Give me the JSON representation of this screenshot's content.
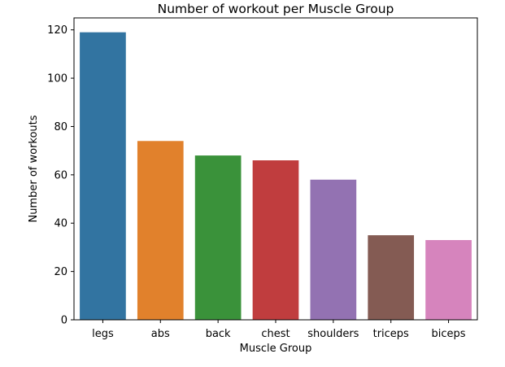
{
  "chart_data": {
    "type": "bar",
    "title": "Number of workout per Muscle Group",
    "xlabel": "Muscle Group",
    "ylabel": "Number of workouts",
    "categories": [
      "legs",
      "abs",
      "back",
      "chest",
      "shoulders",
      "triceps",
      "biceps"
    ],
    "values": [
      119,
      74,
      68,
      66,
      58,
      35,
      33
    ],
    "colors": [
      "#3274a1",
      "#e1812c",
      "#3a923a",
      "#c03d3e",
      "#9372b2",
      "#845b53",
      "#d684bd"
    ],
    "ylim": [
      0,
      124.95
    ],
    "yticks": [
      0,
      20,
      40,
      60,
      80,
      100,
      120
    ],
    "grid": false,
    "legend": "none"
  }
}
